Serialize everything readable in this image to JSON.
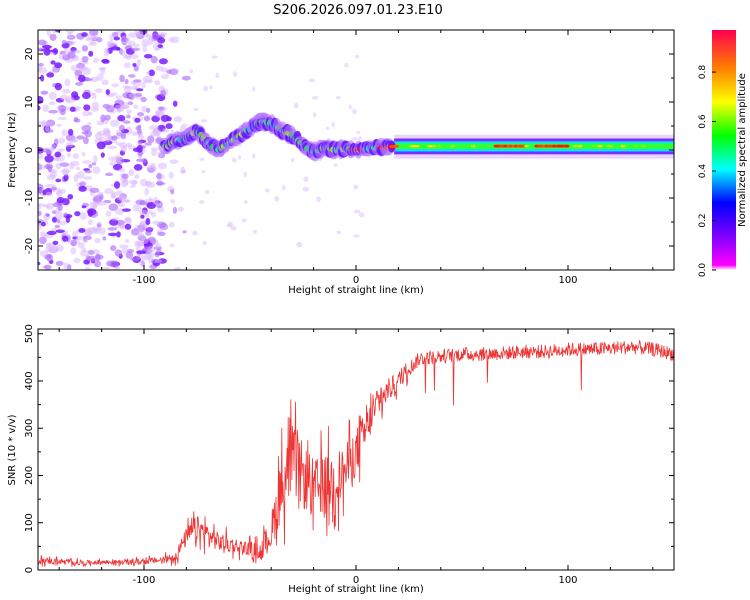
{
  "chart_data": [
    {
      "type": "heatmap",
      "title": "S206.2026.097.01.23.E10",
      "xlabel": "Height of straight line (km)",
      "ylabel": "Frequency (Hz)",
      "xlim": [
        -150,
        150
      ],
      "ylim": [
        -25,
        25
      ],
      "x_ticks": [
        -100,
        0,
        100
      ],
      "x_tick_labels": [
        "-100",
        "0",
        "100"
      ],
      "y_ticks": [
        -20,
        -10,
        0,
        10,
        20
      ],
      "y_tick_labels": [
        "-20",
        "-10",
        "0",
        "10",
        "20"
      ],
      "colorbar": {
        "label": "Normalized spectral amplitude",
        "range": [
          0.0,
          0.97
        ],
        "ticks": [
          0.0,
          0.2,
          0.4,
          0.6,
          0.8
        ],
        "tick_labels": [
          "0.0",
          "0.2",
          "0.4",
          "0.6",
          "0.8"
        ],
        "colormap": [
          "#ff00ff",
          "#8000ff",
          "#0000ff",
          "#00ffff",
          "#00ff00",
          "#ffff00",
          "#ff8000",
          "#ff0000"
        ]
      },
      "noise_region_x": [
        -150,
        -90
      ],
      "ridge": {
        "description": "dominant frequency ridge",
        "points": [
          [
            -88,
            1.5
          ],
          [
            -80,
            2.5
          ],
          [
            -75,
            4
          ],
          [
            -70,
            1.5
          ],
          [
            -65,
            0
          ],
          [
            -60,
            1.5
          ],
          [
            -55,
            3
          ],
          [
            -50,
            4.5
          ],
          [
            -45,
            6
          ],
          [
            -40,
            5.5
          ],
          [
            -35,
            4
          ],
          [
            -30,
            3
          ],
          [
            -25,
            1
          ],
          [
            -20,
            -0.5
          ],
          [
            -15,
            0.5
          ],
          [
            -10,
            0
          ],
          [
            -5,
            0.3
          ],
          [
            0,
            0
          ],
          [
            5,
            0.3
          ],
          [
            10,
            0.5
          ],
          [
            20,
            0.8
          ],
          [
            50,
            0.8
          ],
          [
            100,
            0.8
          ],
          [
            150,
            0.8
          ]
        ],
        "peak_amplitude_segments": [
          [
            -3,
            0
          ],
          [
            0,
            3
          ],
          [
            10,
            20
          ],
          [
            65,
            80
          ],
          [
            85,
            100
          ]
        ]
      }
    },
    {
      "type": "line",
      "title": "",
      "xlabel": "Height of straight line (km)",
      "ylabel": "SNR (10 * v/v)",
      "xlim": [
        -150,
        150
      ],
      "ylim": [
        0,
        510
      ],
      "x_ticks": [
        -100,
        0,
        100
      ],
      "x_tick_labels": [
        "-100",
        "0",
        "100"
      ],
      "y_ticks": [
        0,
        100,
        200,
        300,
        400,
        500
      ],
      "y_tick_labels": [
        "0",
        "100",
        "200",
        "300",
        "400",
        "500"
      ],
      "color": "#ee3333",
      "series": [
        {
          "name": "SNR",
          "x": [
            -150,
            -140,
            -130,
            -120,
            -110,
            -100,
            -90,
            -85,
            -80,
            -75,
            -70,
            -65,
            -60,
            -55,
            -50,
            -45,
            -40,
            -35,
            -30,
            -25,
            -20,
            -15,
            -10,
            -5,
            0,
            5,
            10,
            15,
            20,
            25,
            30,
            40,
            50,
            60,
            70,
            80,
            90,
            100,
            110,
            120,
            130,
            140,
            150
          ],
          "values": [
            20,
            18,
            15,
            17,
            16,
            18,
            22,
            30,
            70,
            90,
            75,
            60,
            55,
            50,
            45,
            40,
            80,
            180,
            230,
            200,
            170,
            180,
            190,
            210,
            250,
            300,
            350,
            380,
            400,
            430,
            450,
            455,
            460,
            460,
            462,
            465,
            465,
            470,
            470,
            472,
            475,
            470,
            460
          ],
          "spread": [
            15,
            12,
            10,
            10,
            10,
            12,
            15,
            25,
            40,
            50,
            45,
            40,
            35,
            30,
            30,
            35,
            80,
            140,
            150,
            140,
            130,
            130,
            120,
            110,
            100,
            80,
            60,
            50,
            40,
            35,
            30,
            30,
            30,
            30,
            30,
            30,
            30,
            30,
            30,
            30,
            30,
            30,
            30
          ]
        }
      ]
    }
  ]
}
